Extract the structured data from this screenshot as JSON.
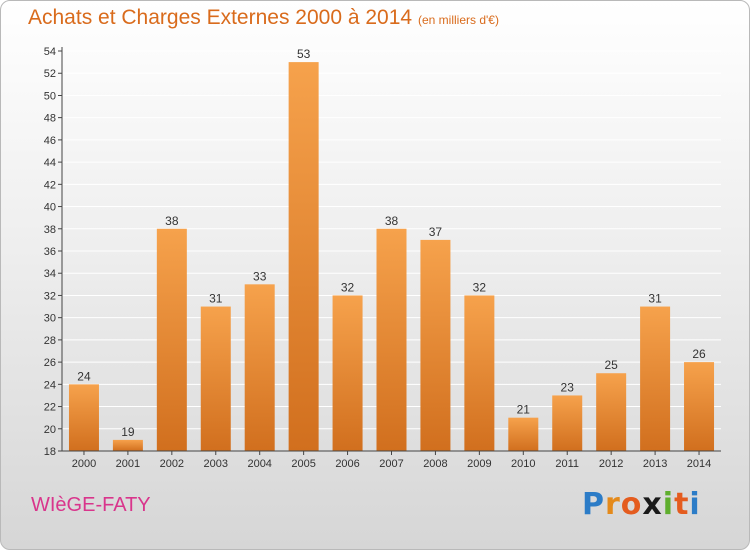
{
  "header": {
    "title": "Achats et Charges Externes 2000 à 2014",
    "subtitle": "(en milliers d'€)"
  },
  "footer": {
    "commune": "WIèGE-FATY",
    "brand_letters": [
      "P",
      "r",
      "o",
      "x",
      "i",
      "t",
      "i"
    ],
    "brand_colors": [
      "#2c7cc7",
      "#e48a1b",
      "#e45c1f",
      "#1a1a1a",
      "#5fae2e",
      "#e45c1f",
      "#2c7cc7"
    ]
  },
  "colors": {
    "bar_top": "#f6a24c",
    "bar_bottom": "#d16f1e",
    "grid": "#ffffff",
    "axis": "#444444",
    "label": "#333333"
  },
  "chart_data": {
    "type": "bar",
    "categories": [
      "2000",
      "2001",
      "2002",
      "2003",
      "2004",
      "2005",
      "2006",
      "2007",
      "2008",
      "2009",
      "2010",
      "2011",
      "2012",
      "2013",
      "2014"
    ],
    "values": [
      24,
      19,
      38,
      31,
      33,
      53,
      32,
      38,
      37,
      32,
      21,
      23,
      25,
      31,
      26
    ],
    "ylim": [
      18,
      54
    ],
    "yticks": [
      18,
      20,
      22,
      24,
      26,
      28,
      30,
      32,
      34,
      36,
      38,
      40,
      42,
      44,
      46,
      48,
      50,
      52,
      54
    ],
    "grid": true,
    "data_labels": true
  }
}
